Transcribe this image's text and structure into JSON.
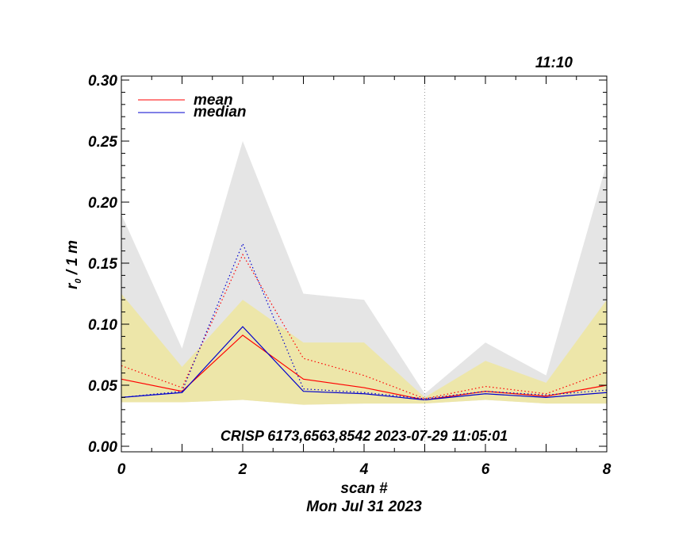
{
  "chart_data": {
    "type": "line",
    "corner_label": "11:10",
    "title": "",
    "xlabel": "scan #",
    "xlabel2": "Mon Jul 31 2023",
    "ylabel_main": "r",
    "ylabel_sub": "0",
    "ylabel_rest": " / 1 m",
    "annotation": "CRISP 6173,6563,8542 2023-07-29 11:05:01",
    "xlim": [
      0,
      8
    ],
    "ylim": [
      0.0,
      0.3
    ],
    "x_ticks": [
      "0",
      "2",
      "4",
      "6",
      "8"
    ],
    "x_tick_values": [
      0,
      2,
      4,
      6,
      8
    ],
    "y_ticks": [
      "0.00",
      "0.05",
      "0.10",
      "0.15",
      "0.20",
      "0.25",
      "0.30"
    ],
    "y_tick_values": [
      0.0,
      0.05,
      0.1,
      0.15,
      0.2,
      0.25,
      0.3
    ],
    "vline_x": 5,
    "x": [
      0,
      1,
      2,
      3,
      4,
      5,
      6,
      7,
      8
    ],
    "bands": [
      {
        "name": "range",
        "color": "#e5e5e5",
        "upper": [
          0.19,
          0.08,
          0.25,
          0.125,
          0.12,
          0.043,
          0.085,
          0.058,
          0.232
        ],
        "lower": [
          0.036,
          0.036,
          0.038,
          0.034,
          0.035,
          0.035,
          0.038,
          0.035,
          0.035
        ]
      },
      {
        "name": "inner",
        "color": "#ede6a9",
        "upper": [
          0.125,
          0.065,
          0.12,
          0.085,
          0.085,
          0.04,
          0.07,
          0.052,
          0.12
        ],
        "lower": [
          0.036,
          0.036,
          0.038,
          0.034,
          0.035,
          0.035,
          0.038,
          0.035,
          0.035
        ]
      }
    ],
    "series": [
      {
        "name": "mean",
        "color": "#ff0000",
        "dash": false,
        "values": [
          0.055,
          0.045,
          0.091,
          0.055,
          0.048,
          0.038,
          0.045,
          0.041,
          0.05
        ]
      },
      {
        "name": "median",
        "color": "#0000cc",
        "dash": false,
        "values": [
          0.04,
          0.044,
          0.098,
          0.045,
          0.043,
          0.038,
          0.043,
          0.04,
          0.044
        ]
      },
      {
        "name": "mean-dotted",
        "color": "#ff0000",
        "dash": true,
        "values": [
          0.066,
          0.048,
          0.157,
          0.072,
          0.058,
          0.039,
          0.049,
          0.043,
          0.061
        ]
      },
      {
        "name": "median-dotted",
        "color": "#0000cc",
        "dash": true,
        "values": [
          0.04,
          0.045,
          0.166,
          0.047,
          0.044,
          0.039,
          0.045,
          0.042,
          0.046
        ]
      }
    ],
    "legend": [
      {
        "label": "mean",
        "color": "#ff0000"
      },
      {
        "label": "median",
        "color": "#0000cc"
      }
    ]
  }
}
